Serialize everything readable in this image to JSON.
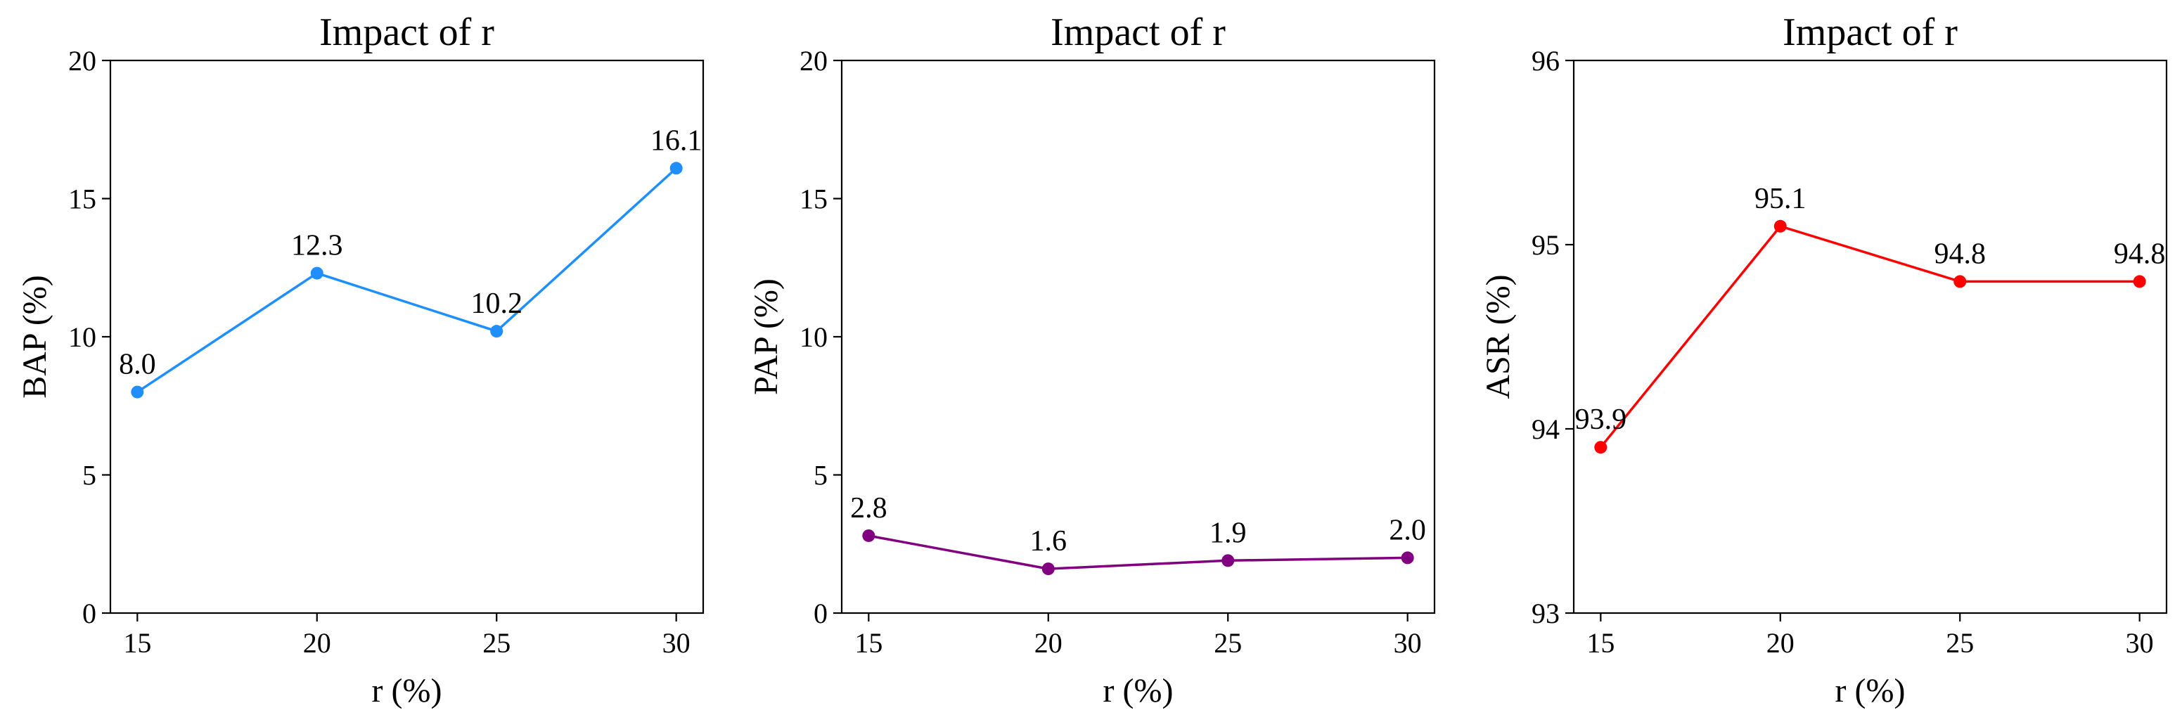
{
  "chart_data": [
    {
      "type": "line",
      "title": "Impact of r",
      "xlabel": "r (%)",
      "ylabel": "BAP (%)",
      "x": [
        15,
        20,
        25,
        30
      ],
      "xticks": [
        "15",
        "20",
        "25",
        "30"
      ],
      "ylim": [
        0,
        20
      ],
      "yticks": [
        "0",
        "5",
        "10",
        "15",
        "20"
      ],
      "grid": false,
      "series": [
        {
          "values": [
            8.0,
            12.3,
            10.2,
            16.1
          ],
          "labels": [
            "8.0",
            "12.3",
            "10.2",
            "16.1"
          ],
          "color": "#1f8fff"
        }
      ]
    },
    {
      "type": "line",
      "title": "Impact of r",
      "xlabel": "r (%)",
      "ylabel": "PAP (%)",
      "x": [
        15,
        20,
        25,
        30
      ],
      "xticks": [
        "15",
        "20",
        "25",
        "30"
      ],
      "ylim": [
        0,
        20
      ],
      "yticks": [
        "0",
        "5",
        "10",
        "15",
        "20"
      ],
      "grid": false,
      "series": [
        {
          "values": [
            2.8,
            1.6,
            1.9,
            2.0
          ],
          "labels": [
            "2.8",
            "1.6",
            "1.9",
            "2.0"
          ],
          "color": "#800080"
        }
      ]
    },
    {
      "type": "line",
      "title": "Impact of r",
      "xlabel": "r (%)",
      "ylabel": "ASR (%)",
      "x": [
        15,
        20,
        25,
        30
      ],
      "xticks": [
        "15",
        "20",
        "25",
        "30"
      ],
      "ylim": [
        93,
        96
      ],
      "yticks": [
        "93",
        "94",
        "95",
        "96"
      ],
      "grid": false,
      "series": [
        {
          "values": [
            93.9,
            95.1,
            94.8,
            94.8
          ],
          "labels": [
            "93.9",
            "95.1",
            "94.8",
            "94.8"
          ],
          "color": "#ff0000"
        }
      ]
    }
  ]
}
